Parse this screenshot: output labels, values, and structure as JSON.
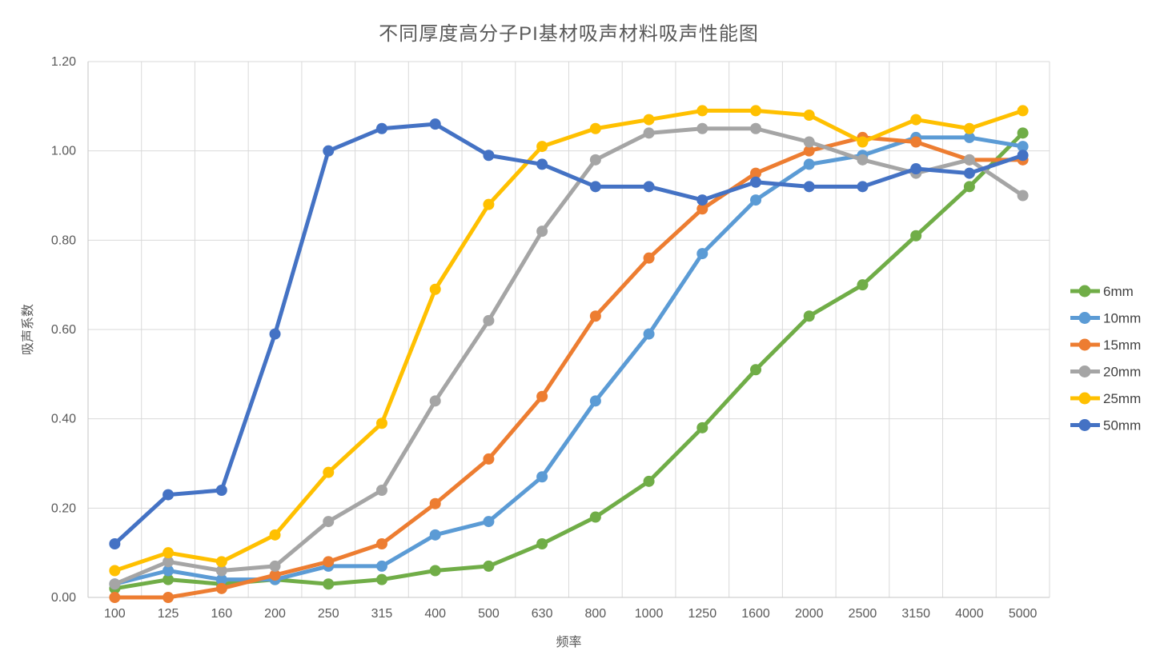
{
  "chart_data": {
    "type": "line",
    "title": "不同厚度高分子PI基材吸声材料吸声性能图",
    "xlabel": "频率",
    "ylabel": "吸声系数",
    "ylim": [
      0.0,
      1.2
    ],
    "y_step": 0.2,
    "y_tick_labels": [
      "0.00",
      "0.20",
      "0.40",
      "0.60",
      "0.80",
      "1.00",
      "1.20"
    ],
    "grid": true,
    "legend_position": "right",
    "categories": [
      "100",
      "125",
      "160",
      "200",
      "250",
      "315",
      "400",
      "500",
      "630",
      "800",
      "1000",
      "1250",
      "1600",
      "2000",
      "2500",
      "3150",
      "4000",
      "5000"
    ],
    "series": [
      {
        "name": "6mm",
        "color": "#70AD47",
        "values": [
          0.02,
          0.04,
          0.03,
          0.04,
          0.03,
          0.04,
          0.06,
          0.07,
          0.12,
          0.18,
          0.26,
          0.38,
          0.51,
          0.63,
          0.7,
          0.81,
          0.92,
          1.04
        ]
      },
      {
        "name": "10mm",
        "color": "#5B9BD5",
        "values": [
          0.03,
          0.06,
          0.04,
          0.04,
          0.07,
          0.07,
          0.14,
          0.17,
          0.27,
          0.44,
          0.59,
          0.77,
          0.89,
          0.97,
          0.99,
          1.03,
          1.03,
          1.01
        ]
      },
      {
        "name": "15mm",
        "color": "#ED7D31",
        "values": [
          0.0,
          0.0,
          0.02,
          0.05,
          0.08,
          0.12,
          0.21,
          0.31,
          0.45,
          0.63,
          0.76,
          0.87,
          0.95,
          1.0,
          1.03,
          1.02,
          0.98,
          0.98
        ]
      },
      {
        "name": "20mm",
        "color": "#A5A5A5",
        "values": [
          0.03,
          0.08,
          0.06,
          0.07,
          0.17,
          0.24,
          0.44,
          0.62,
          0.82,
          0.98,
          1.04,
          1.05,
          1.05,
          1.02,
          0.98,
          0.95,
          0.98,
          0.9
        ]
      },
      {
        "name": "25mm",
        "color": "#FFC000",
        "values": [
          0.06,
          0.1,
          0.08,
          0.14,
          0.28,
          0.39,
          0.69,
          0.88,
          1.01,
          1.05,
          1.07,
          1.09,
          1.09,
          1.08,
          1.02,
          1.07,
          1.05,
          1.09
        ]
      },
      {
        "name": "50mm",
        "color": "#4472C4",
        "values": [
          0.12,
          0.23,
          0.24,
          0.59,
          1.0,
          1.05,
          1.06,
          0.99,
          0.97,
          0.92,
          0.92,
          0.89,
          0.93,
          0.92,
          0.92,
          0.96,
          0.95,
          0.99
        ]
      }
    ],
    "style": {
      "gridline_color": "#D9D9D9",
      "axis_line_color": "#C6C6C6",
      "tick_label_color": "#595959",
      "title_color": "#595959",
      "background": "#FFFFFF",
      "line_width": 5,
      "marker_radius": 7
    }
  }
}
